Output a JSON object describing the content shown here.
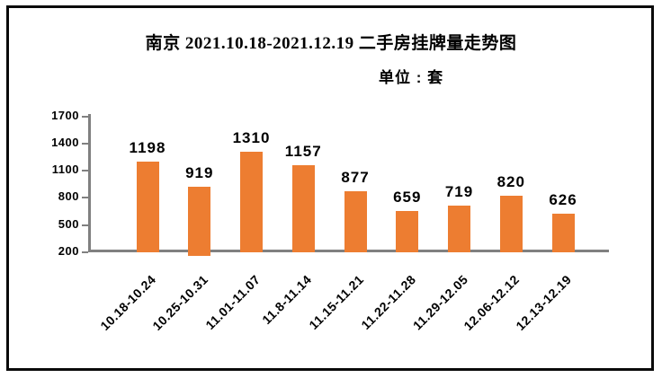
{
  "chart_data": {
    "type": "bar",
    "title": "南京 2021.10.18-2021.12.19 二手房挂牌量走势图",
    "subtitle": "单位 : 套",
    "categories": [
      "10.18-10.24",
      "10.25-10.31",
      "11.01-11.07",
      "11.8-11.14",
      "11.15-11.21",
      "11.22-11.28",
      "11.29-12.05",
      "12.06-12.12",
      "12.13-12.19"
    ],
    "values": [
      1198,
      919,
      1310,
      1157,
      877,
      659,
      719,
      820,
      626
    ],
    "y_ticks": [
      200,
      500,
      800,
      1100,
      1400,
      1700
    ],
    "ylim": [
      200,
      1700
    ],
    "xlabel": "",
    "ylabel": "",
    "data_labels": true,
    "grid": false,
    "legend": false,
    "bar_color": "#ED7D31",
    "axis_color": "#808080",
    "text_color": "#000000",
    "frame_color": "#0a0a0a"
  }
}
